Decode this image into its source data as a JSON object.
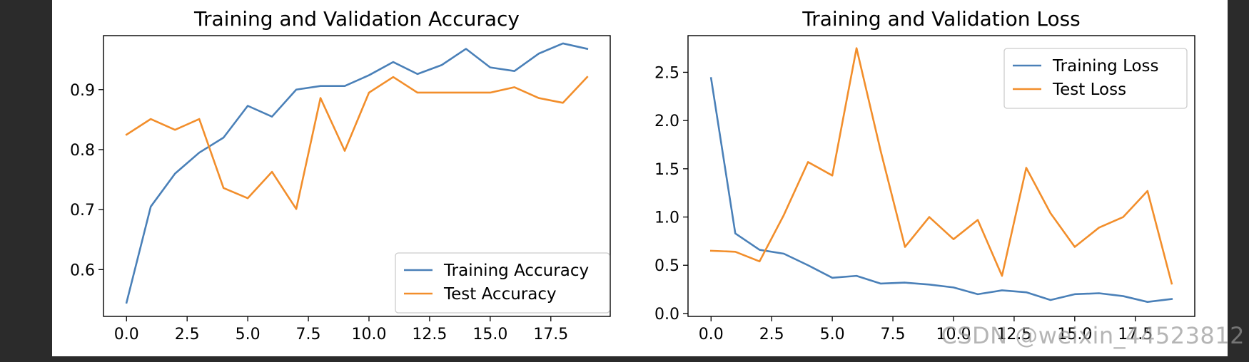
{
  "watermark": "CSDN @weixin_44523812",
  "colors": {
    "training": "#4a80b8",
    "test": "#f28e2b"
  },
  "chart_data": [
    {
      "type": "line",
      "title": "Training and Validation Accuracy",
      "xlabel": "",
      "ylabel": "",
      "x": [
        0,
        1,
        2,
        3,
        4,
        5,
        6,
        7,
        8,
        9,
        10,
        11,
        12,
        13,
        14,
        15,
        16,
        17,
        18,
        19
      ],
      "xlim": [
        -0.95,
        19.95
      ],
      "ylim": [
        0.522,
        0.99
      ],
      "xticks": [
        0.0,
        2.5,
        5.0,
        7.5,
        10.0,
        12.5,
        15.0,
        17.5
      ],
      "xtick_labels": [
        "0.0",
        "2.5",
        "5.0",
        "7.5",
        "10.0",
        "12.5",
        "15.0",
        "17.5"
      ],
      "yticks": [
        0.6,
        0.7,
        0.8,
        0.9
      ],
      "ytick_labels": [
        "0.6",
        "0.7",
        "0.8",
        "0.9"
      ],
      "legend": "bottom-right",
      "series": [
        {
          "name": "Training Accuracy",
          "color_key": "training",
          "values": [
            0.545,
            0.705,
            0.76,
            0.795,
            0.82,
            0.873,
            0.855,
            0.9,
            0.906,
            0.906,
            0.924,
            0.946,
            0.926,
            0.941,
            0.968,
            0.937,
            0.931,
            0.96,
            0.977,
            0.968
          ]
        },
        {
          "name": "Test Accuracy",
          "color_key": "test",
          "values": [
            0.825,
            0.851,
            0.833,
            0.851,
            0.736,
            0.719,
            0.763,
            0.701,
            0.886,
            0.798,
            0.895,
            0.921,
            0.895,
            0.895,
            0.895,
            0.895,
            0.904,
            0.886,
            0.878,
            0.921
          ]
        }
      ]
    },
    {
      "type": "line",
      "title": "Training and Validation Loss",
      "xlabel": "",
      "ylabel": "",
      "x": [
        0,
        1,
        2,
        3,
        4,
        5,
        6,
        7,
        8,
        9,
        10,
        11,
        12,
        13,
        14,
        15,
        16,
        17,
        18,
        19
      ],
      "xlim": [
        -0.95,
        19.95
      ],
      "ylim": [
        -0.03,
        2.88
      ],
      "xticks": [
        0.0,
        2.5,
        5.0,
        7.5,
        10.0,
        12.5,
        15.0,
        17.5
      ],
      "xtick_labels": [
        "0.0",
        "2.5",
        "5.0",
        "7.5",
        "10.0",
        "12.5",
        "15.0",
        "17.5"
      ],
      "yticks": [
        0.0,
        0.5,
        1.0,
        1.5,
        2.0,
        2.5
      ],
      "ytick_labels": [
        "0.0",
        "0.5",
        "1.0",
        "1.5",
        "2.0",
        "2.5"
      ],
      "legend": "top-right",
      "series": [
        {
          "name": "Training Loss",
          "color_key": "training",
          "values": [
            2.44,
            0.83,
            0.66,
            0.62,
            0.5,
            0.37,
            0.39,
            0.31,
            0.32,
            0.3,
            0.27,
            0.2,
            0.24,
            0.22,
            0.14,
            0.2,
            0.21,
            0.18,
            0.12,
            0.15
          ]
        },
        {
          "name": "Test Loss",
          "color_key": "test",
          "values": [
            0.65,
            0.64,
            0.54,
            1.02,
            1.57,
            1.43,
            2.75,
            1.68,
            0.69,
            1.0,
            0.77,
            0.97,
            0.39,
            1.51,
            1.04,
            0.69,
            0.89,
            1.0,
            1.27,
            0.31
          ]
        }
      ]
    }
  ]
}
